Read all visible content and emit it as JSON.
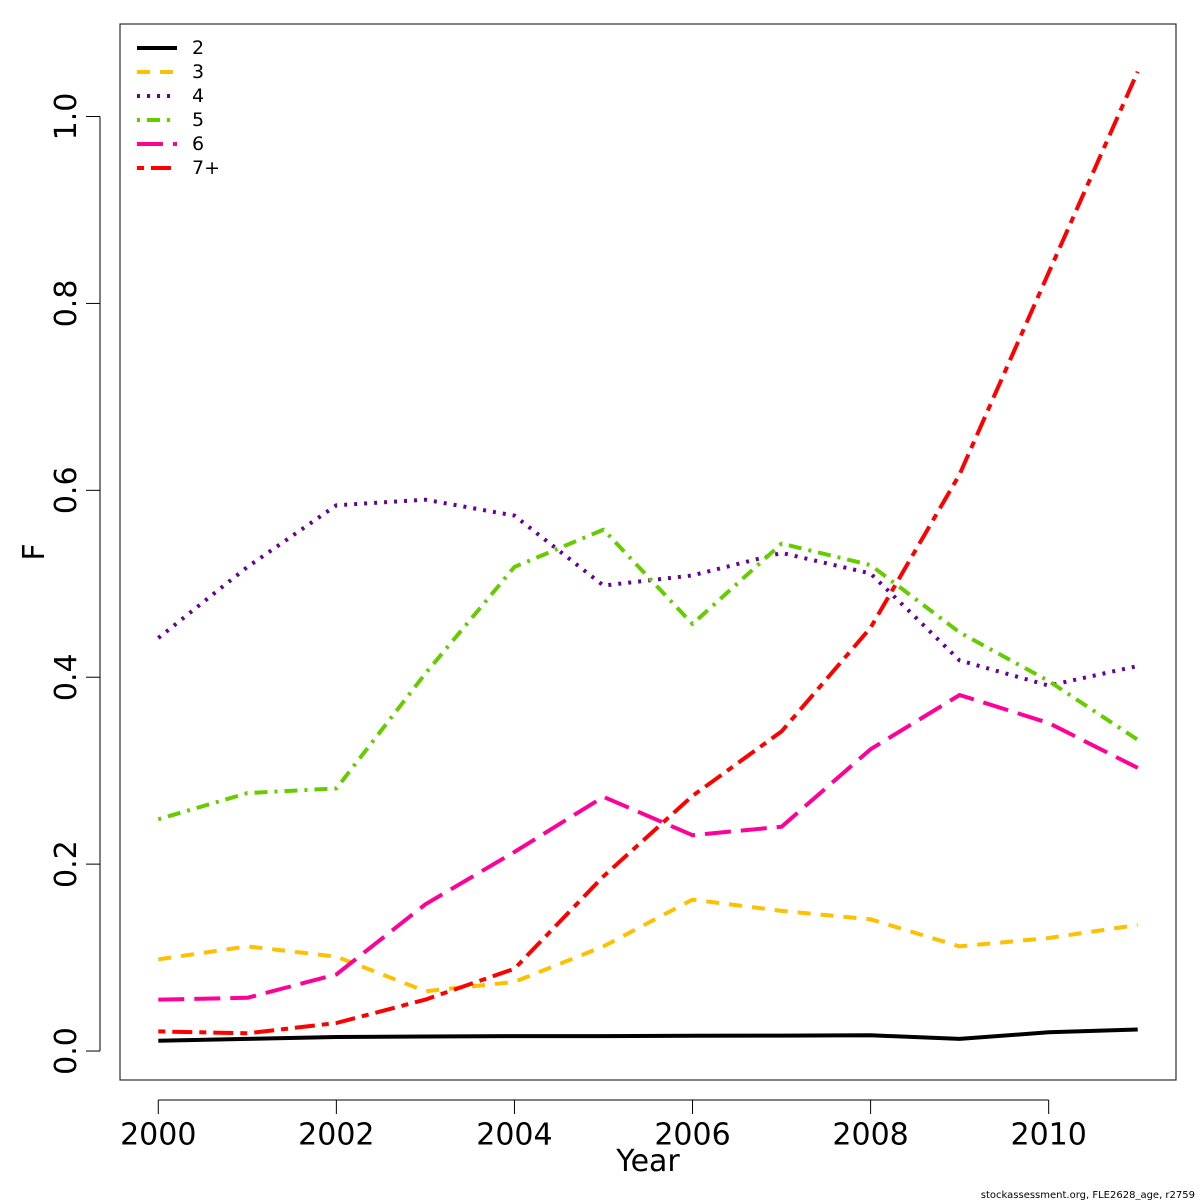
{
  "chart_data": {
    "type": "line",
    "title": "",
    "xlabel": "Year",
    "ylabel": "F",
    "xlim": [
      1999.57,
      2011.43
    ],
    "ylim": [
      -0.031,
      1.099
    ],
    "x_ticks": [
      2000,
      2002,
      2004,
      2006,
      2008,
      2010
    ],
    "y_ticks": [
      0.0,
      0.2,
      0.4,
      0.6,
      0.8,
      1.0
    ],
    "x_tick_labels": [
      "2000",
      "2002",
      "2004",
      "2006",
      "2008",
      "2010"
    ],
    "y_tick_labels": [
      "0.0",
      "0.2",
      "0.4",
      "0.6",
      "0.8",
      "1.0"
    ],
    "grid": false,
    "legend_position": "top-left",
    "x": [
      2000,
      2001,
      2002,
      2003,
      2004,
      2005,
      2006,
      2007,
      2008,
      2009,
      2010,
      2011
    ],
    "series": [
      {
        "name": "2",
        "color": "#000000",
        "dash": "solid",
        "values": [
          0.011,
          0.013,
          0.015,
          0.0155,
          0.016,
          0.016,
          0.0163,
          0.0165,
          0.0168,
          0.013,
          0.02,
          0.023
        ]
      },
      {
        "name": "3",
        "color": "#FFC000",
        "dash": "dashed",
        "values": [
          0.098,
          0.112,
          0.101,
          0.064,
          0.074,
          0.112,
          0.162,
          0.15,
          0.141,
          0.112,
          0.121,
          0.135
        ]
      },
      {
        "name": "4",
        "color": "#660099",
        "dash": "dotted",
        "values": [
          0.442,
          0.518,
          0.584,
          0.59,
          0.573,
          0.498,
          0.509,
          0.533,
          0.511,
          0.418,
          0.391,
          0.412
        ]
      },
      {
        "name": "5",
        "color": "#66CC00",
        "dash": "dotdash",
        "values": [
          0.248,
          0.276,
          0.281,
          0.404,
          0.518,
          0.558,
          0.457,
          0.543,
          0.52,
          0.448,
          0.396,
          0.333
        ]
      },
      {
        "name": "6",
        "color": "#FF0099",
        "dash": "longdash",
        "values": [
          0.055,
          0.057,
          0.082,
          0.157,
          0.213,
          0.272,
          0.231,
          0.24,
          0.323,
          0.381,
          0.351,
          0.303
        ]
      },
      {
        "name": "7+",
        "color": "#FF0000",
        "dash": "twodash",
        "values": [
          0.021,
          0.019,
          0.03,
          0.055,
          0.088,
          0.187,
          0.273,
          0.342,
          0.453,
          0.617,
          0.833,
          1.048
        ]
      }
    ]
  },
  "footer": {
    "text": "stockassessment.org, FLE2628_age, r2759"
  }
}
